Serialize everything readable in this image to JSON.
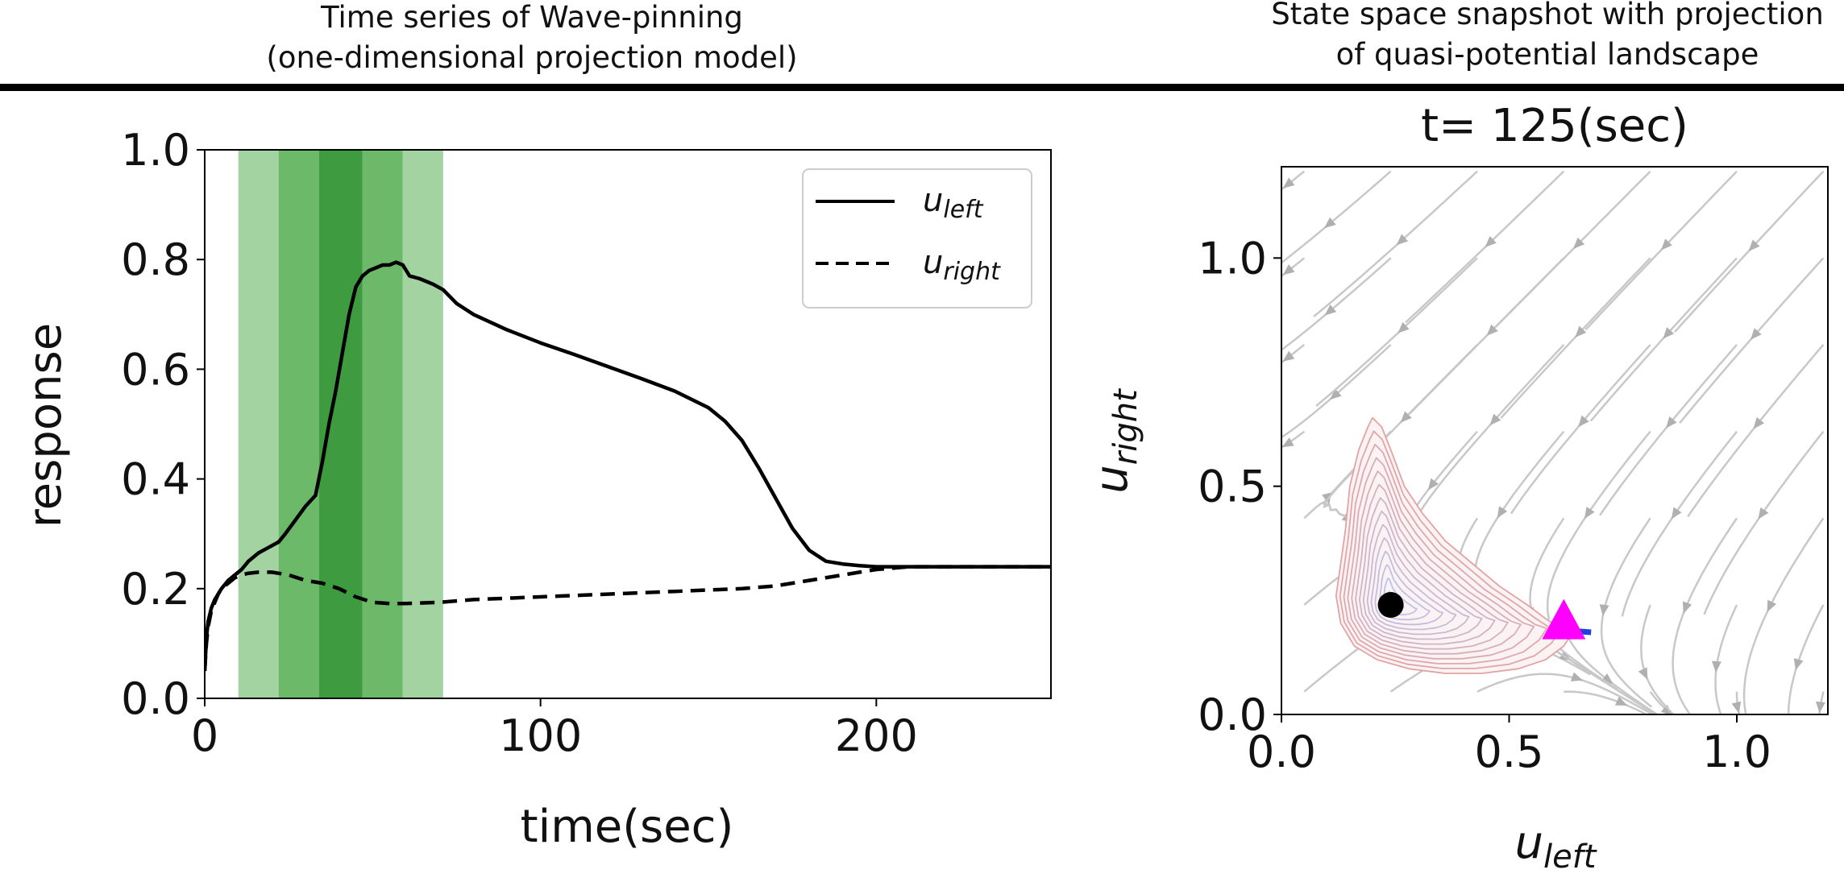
{
  "headers": {
    "left": [
      "Time series of Wave-pinning",
      "(one-dimensional projection model)"
    ],
    "right": [
      "State space snapshot with projection",
      "of quasi-potential landscape"
    ]
  },
  "chart_data": [
    {
      "type": "line",
      "title": "",
      "xlabel": "time(sec)",
      "ylabel": "response",
      "xlim": [
        0,
        252
      ],
      "ylim": [
        0,
        1.0
      ],
      "xticks": [
        0,
        100,
        200
      ],
      "yticks": [
        0.0,
        0.2,
        0.4,
        0.6,
        0.8,
        1.0
      ],
      "xtick_labels": [
        "0",
        "100",
        "200"
      ],
      "ytick_labels": [
        "0.0",
        "0.2",
        "0.4",
        "0.6",
        "0.8",
        "1.0"
      ],
      "legend_position": "top-right",
      "grid": false,
      "bands": [
        {
          "x0": 10,
          "x1": 22,
          "color": "#a3d3a1"
        },
        {
          "x0": 22,
          "x1": 34,
          "color": "#6db96a"
        },
        {
          "x0": 34,
          "x1": 47,
          "color": "#3f9b3f"
        },
        {
          "x0": 47,
          "x1": 59,
          "color": "#6db96a"
        },
        {
          "x0": 59,
          "x1": 71,
          "color": "#a3d3a1"
        }
      ],
      "series": [
        {
          "name": "u_left",
          "name_base": "u",
          "name_sub": "left",
          "style": "solid",
          "color": "#000000",
          "x": [
            0,
            0.5,
            1,
            2,
            3,
            4,
            5,
            7,
            9,
            11,
            13,
            16,
            19,
            22,
            24,
            27,
            30,
            33,
            35,
            37,
            39,
            41,
            43,
            45,
            47,
            49,
            51,
            53,
            55,
            57,
            59,
            61,
            64,
            68,
            71,
            75,
            80,
            90,
            100,
            110,
            120,
            130,
            140,
            150,
            155,
            160,
            165,
            170,
            175,
            180,
            185,
            190,
            195,
            200,
            210,
            220,
            230,
            240,
            252
          ],
          "y": [
            0.05,
            0.11,
            0.14,
            0.165,
            0.18,
            0.19,
            0.2,
            0.215,
            0.225,
            0.235,
            0.25,
            0.265,
            0.275,
            0.285,
            0.3,
            0.325,
            0.35,
            0.37,
            0.43,
            0.5,
            0.56,
            0.63,
            0.7,
            0.75,
            0.77,
            0.78,
            0.785,
            0.79,
            0.79,
            0.795,
            0.79,
            0.77,
            0.765,
            0.755,
            0.745,
            0.72,
            0.7,
            0.672,
            0.648,
            0.627,
            0.605,
            0.583,
            0.56,
            0.53,
            0.505,
            0.47,
            0.42,
            0.365,
            0.31,
            0.27,
            0.25,
            0.245,
            0.242,
            0.24,
            0.24,
            0.24,
            0.24,
            0.24,
            0.24
          ]
        },
        {
          "name": "u_right",
          "name_base": "u",
          "name_sub": "right",
          "style": "dashed",
          "color": "#000000",
          "x": [
            0,
            0.5,
            1,
            2,
            3,
            4,
            5,
            7,
            9,
            11,
            13,
            16,
            20,
            25,
            30,
            35,
            40,
            45,
            50,
            55,
            60,
            70,
            80,
            100,
            120,
            140,
            160,
            170,
            180,
            190,
            195,
            200,
            210,
            220,
            230,
            240,
            252
          ],
          "y": [
            0.05,
            0.1,
            0.13,
            0.16,
            0.175,
            0.19,
            0.2,
            0.21,
            0.22,
            0.225,
            0.228,
            0.23,
            0.23,
            0.225,
            0.215,
            0.21,
            0.2,
            0.185,
            0.175,
            0.173,
            0.173,
            0.175,
            0.18,
            0.185,
            0.19,
            0.195,
            0.2,
            0.205,
            0.215,
            0.225,
            0.23,
            0.235,
            0.24,
            0.24,
            0.24,
            0.24,
            0.24
          ]
        }
      ]
    },
    {
      "type": "scatter",
      "title": "t= 125(sec)",
      "xlabel": "u_left",
      "xlabel_base": "u",
      "xlabel_sub": "left",
      "ylabel": "u_right",
      "ylabel_base": "u",
      "ylabel_sub": "right",
      "xlim": [
        0,
        1.2
      ],
      "ylim": [
        0,
        1.2
      ],
      "xticks": [
        0.0,
        0.5,
        1.0
      ],
      "yticks": [
        0.0,
        0.5,
        1.0
      ],
      "xtick_labels": [
        "0.0",
        "0.5",
        "1.0"
      ],
      "ytick_labels": [
        "0.0",
        "0.5",
        "1.0"
      ],
      "grid": false,
      "markers": [
        {
          "name": "stable-state",
          "shape": "circle",
          "x": 0.24,
          "y": 0.24,
          "color": "#000000"
        },
        {
          "name": "current-state",
          "shape": "triangle",
          "x": 0.62,
          "y": 0.2,
          "color": "#ff00ff"
        }
      ],
      "trail": {
        "color": "#1f3fe0",
        "x": [
          0.6,
          0.64,
          0.68
        ],
        "y": [
          0.185,
          0.183,
          0.18
        ]
      },
      "landscape": {
        "minimum": [
          0.24,
          0.24
        ],
        "colors": {
          "inner": "#b9c8f5",
          "outer": "#e3a3a3"
        },
        "outer_contour": {
          "x": [
            0.14,
            0.15,
            0.17,
            0.19,
            0.2,
            0.22,
            0.24,
            0.27,
            0.31,
            0.36,
            0.42,
            0.48,
            0.54,
            0.58,
            0.61,
            0.64,
            0.62,
            0.58,
            0.52,
            0.44,
            0.36,
            0.28,
            0.21,
            0.16,
            0.13,
            0.12,
            0.13,
            0.14
          ],
          "y": [
            0.4,
            0.5,
            0.58,
            0.63,
            0.65,
            0.63,
            0.58,
            0.5,
            0.44,
            0.38,
            0.33,
            0.28,
            0.24,
            0.21,
            0.19,
            0.18,
            0.15,
            0.12,
            0.1,
            0.09,
            0.09,
            0.1,
            0.12,
            0.15,
            0.2,
            0.26,
            0.33,
            0.4
          ]
        },
        "levels": 14
      },
      "streamlines": {
        "color": "#c8c8c8"
      }
    }
  ]
}
